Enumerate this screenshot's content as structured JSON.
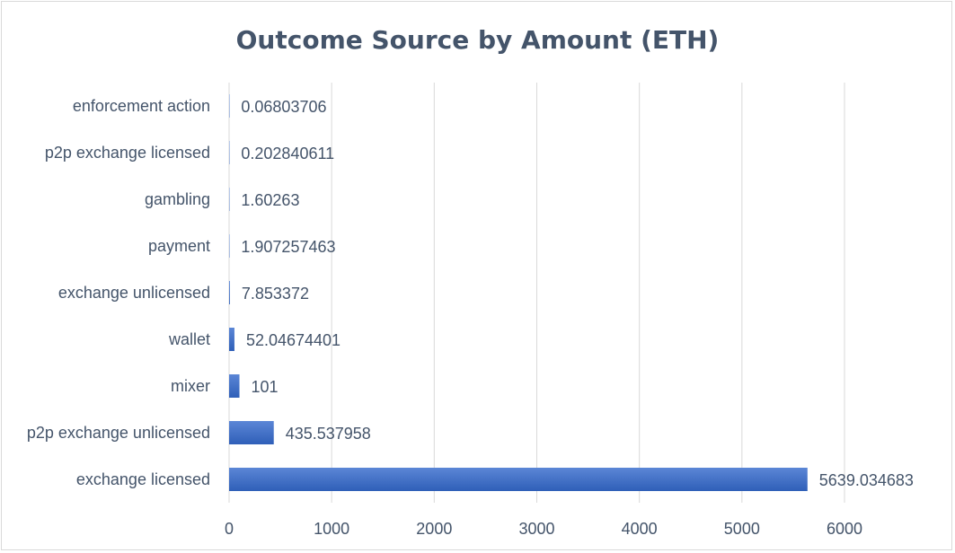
{
  "chart_data": {
    "type": "bar",
    "orientation": "horizontal",
    "title": "Outcome Source by Amount (ETH)",
    "categories": [
      "exchange licensed",
      "p2p exchange unlicensed",
      "mixer",
      "wallet",
      "exchange unlicensed",
      "payment",
      "gambling",
      "p2p exchange licensed",
      "enforcement action"
    ],
    "values": [
      5639.034683,
      435.537958,
      101,
      52.04674401,
      7.853372,
      1.907257463,
      1.60263,
      0.202840611,
      0.06803706
    ],
    "data_labels": [
      "5639.034683",
      "435.537958",
      "101",
      "52.04674401",
      "7.853372",
      "1.907257463",
      "1.60263",
      "0.202840611",
      "0.06803706"
    ],
    "xlim": [
      0,
      6000
    ],
    "xticks": [
      0,
      1000,
      2000,
      3000,
      4000,
      5000,
      6000
    ],
    "grid": true,
    "legend": "none",
    "colors": {
      "bar_top": "#5b86d6",
      "bar_bottom": "#2f5fb8",
      "grid": "#d9d9d9",
      "text": "#44546a"
    }
  }
}
